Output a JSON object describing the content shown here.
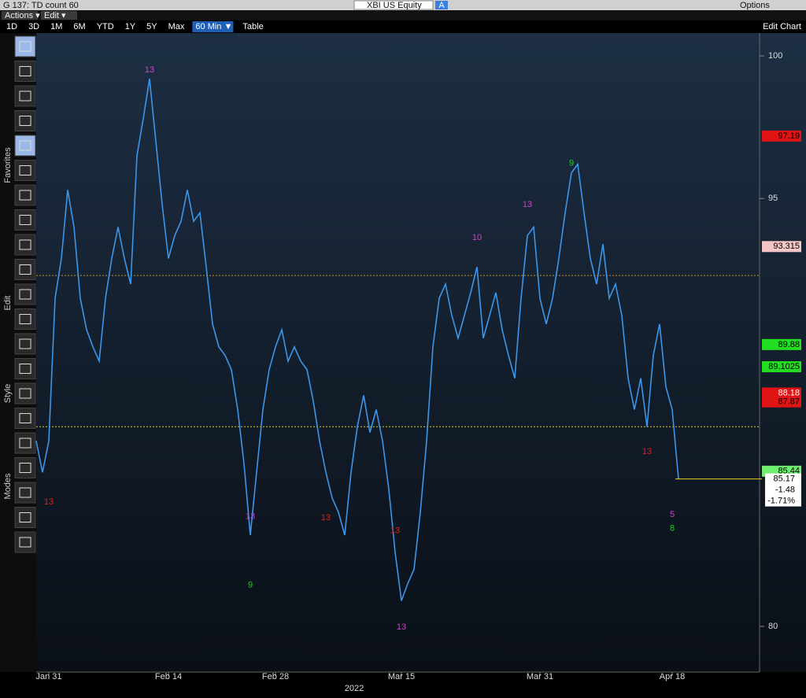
{
  "ui": {
    "window_title": "G 137: TD count 60",
    "menu": [
      "Actions ▾",
      "Edit ▾"
    ],
    "security": "XBI US Equity",
    "security_tag": "A",
    "options": "Options",
    "ranges": [
      "1D",
      "3D",
      "1M",
      "6M",
      "YTD",
      "1Y",
      "5Y",
      "Max"
    ],
    "active_range": "60 Min ▼",
    "table": "Table",
    "edit_chart": "Edit Chart",
    "side_tabs": [
      "Favorites",
      "Edit",
      "Style",
      "Modes"
    ]
  },
  "chart_data": {
    "type": "line",
    "categories": [
      null,
      null,
      "Jan 31",
      null,
      null,
      null,
      null,
      null,
      null,
      null,
      null,
      null,
      null,
      null,
      null,
      null,
      null,
      null,
      null,
      null,
      null,
      "Feb 14",
      null,
      null,
      null,
      null,
      null,
      null,
      null,
      null,
      null,
      null,
      null,
      null,
      null,
      null,
      null,
      null,
      "Feb 28",
      null,
      null,
      null,
      null,
      null,
      null,
      null,
      null,
      null,
      null,
      null,
      null,
      null,
      null,
      null,
      null,
      null,
      null,
      null,
      "Mar 15",
      null,
      null,
      null,
      null,
      null,
      null,
      null,
      null,
      null,
      null,
      null,
      null,
      null,
      null,
      null,
      null,
      null,
      null,
      null,
      null,
      null,
      "Mar 31",
      null,
      null,
      null,
      null,
      null,
      null,
      null,
      null,
      null,
      null,
      null,
      null,
      null,
      null,
      null,
      null,
      null,
      null,
      null,
      null,
      "Apr 18",
      null
    ],
    "year_label": "2022",
    "series": [
      {
        "name": "XBI US Equity",
        "color": "#3d95ea",
        "values": [
          86.5,
          85.4,
          86.5,
          91.5,
          92.9,
          95.3,
          94.0,
          91.5,
          90.4,
          89.8,
          89.3,
          91.5,
          92.9,
          94.0,
          92.9,
          92.0,
          96.5,
          97.8,
          99.2,
          97.0,
          94.8,
          92.9,
          93.7,
          94.2,
          95.3,
          94.2,
          94.5,
          92.6,
          90.6,
          89.8,
          89.5,
          89.0,
          87.6,
          85.7,
          83.2,
          85.4,
          87.6,
          89.0,
          89.8,
          90.4,
          89.3,
          89.8,
          89.3,
          89.0,
          87.9,
          86.5,
          85.4,
          84.5,
          84.0,
          83.2,
          85.4,
          87.0,
          88.1,
          86.8,
          87.6,
          86.5,
          84.8,
          82.6,
          80.9,
          81.5,
          82.0,
          84.0,
          86.5,
          89.8,
          91.5,
          92.0,
          90.9,
          90.1,
          90.9,
          91.7,
          92.6,
          90.1,
          90.9,
          91.7,
          90.4,
          89.5,
          88.7,
          91.5,
          93.7,
          94.0,
          91.5,
          90.6,
          91.5,
          92.9,
          94.5,
          95.9,
          96.2,
          94.5,
          92.9,
          92.0,
          93.4,
          91.5,
          92.0,
          90.9,
          88.7,
          87.6,
          88.7,
          87.0,
          89.5,
          90.6,
          88.4,
          87.6,
          85.17
        ]
      }
    ],
    "ylim": [
      78.4,
      100.8
    ],
    "yticks": [
      80,
      95,
      100
    ],
    "reference_lines": [
      {
        "value": 92.3,
        "color": "#d88a1a"
      },
      {
        "value": 87.0,
        "color": "#e0d020"
      }
    ],
    "price_labels": [
      {
        "value": 97.19,
        "color": "#e01414",
        "text_color": "#000"
      },
      {
        "value": 93.315,
        "color": "#f6c6c6",
        "text_color": "#000"
      },
      {
        "value": 89.88,
        "color": "#22dd22",
        "text_color": "#000"
      },
      {
        "value": 89.1025,
        "color": "#22dd22",
        "text_color": "#000"
      },
      {
        "value": 88.18,
        "color": "#e01414",
        "text_color": "#fff"
      },
      {
        "value": 87.87,
        "color": "#e01414",
        "text_color": "#000"
      },
      {
        "value": 85.44,
        "color": "#6ef06e",
        "text_color": "#000"
      }
    ],
    "last_price": {
      "value": 85.17,
      "change": -1.48,
      "change_label": "-1.71%"
    },
    "annotations": [
      {
        "label": "13",
        "index": 18,
        "value": 99.5,
        "color": "#d040d0"
      },
      {
        "label": "13",
        "index": 34,
        "value": 83.85,
        "color": "#d040d0"
      },
      {
        "label": "13",
        "index": 46,
        "value": 83.8,
        "color": "#e02020"
      },
      {
        "label": "13",
        "index": 57,
        "value": 83.35,
        "color": "#e02020"
      },
      {
        "label": "13",
        "index": 58,
        "value": 79.97,
        "color": "#d040d0"
      },
      {
        "label": "13",
        "index": 78,
        "value": 94.79,
        "color": "#d040d0"
      },
      {
        "label": "13",
        "index": 97,
        "value": 86.12,
        "color": "#e02020"
      },
      {
        "label": "13",
        "index": 2,
        "value": 84.35,
        "color": "#e02020"
      },
      {
        "label": "9",
        "index": 34,
        "value": 81.44,
        "color": "#22cc22"
      },
      {
        "label": "10",
        "index": 70,
        "value": 93.63,
        "color": "#d040d0"
      },
      {
        "label": "9",
        "index": 85,
        "value": 96.23,
        "color": "#22cc22"
      },
      {
        "label": "5",
        "index": 101,
        "value": 83.91,
        "color": "#d040d0"
      },
      {
        "label": "8",
        "index": 101,
        "value": 83.43,
        "color": "#22cc22"
      }
    ]
  }
}
